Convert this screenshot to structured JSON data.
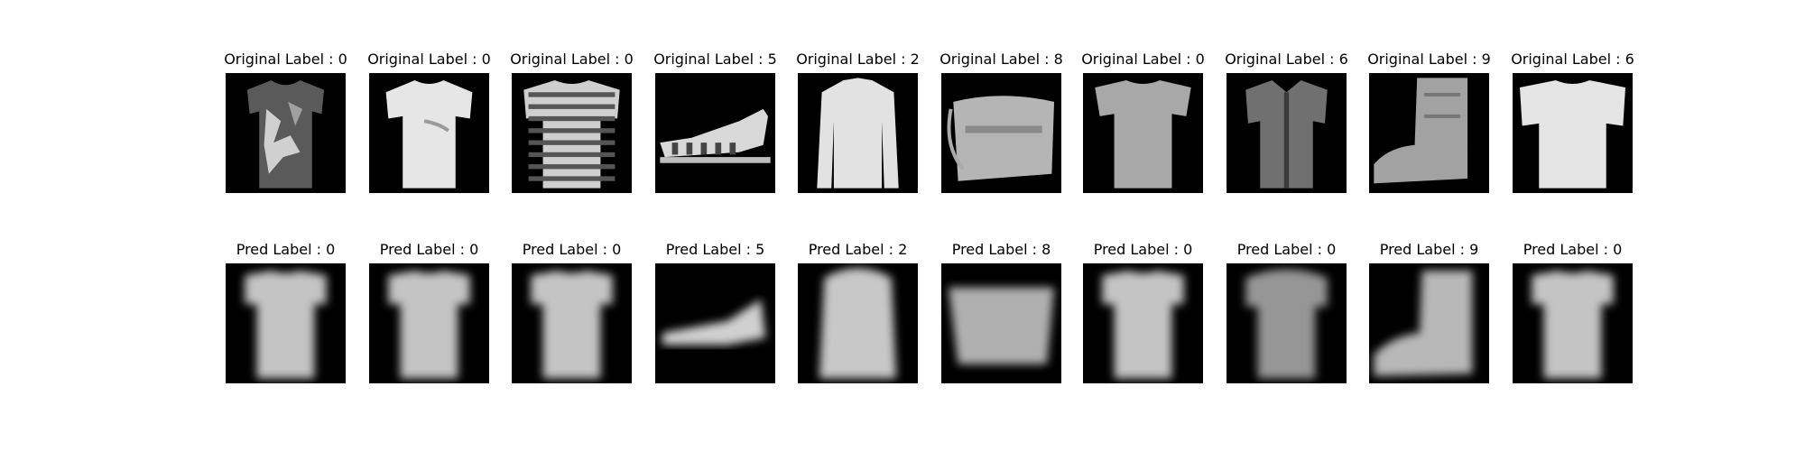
{
  "rows": [
    {
      "caption_prefix": "Original Label : ",
      "items": [
        {
          "label": "0",
          "glyph": "shirt-dark-pattern"
        },
        {
          "label": "0",
          "glyph": "tshirt-light"
        },
        {
          "label": "0",
          "glyph": "tshirt-striped"
        },
        {
          "label": "5",
          "glyph": "sandal"
        },
        {
          "label": "2",
          "glyph": "longsleeve"
        },
        {
          "label": "8",
          "glyph": "bag"
        },
        {
          "label": "0",
          "glyph": "tshirt-gray"
        },
        {
          "label": "6",
          "glyph": "shirt-dark"
        },
        {
          "label": "9",
          "glyph": "boot"
        },
        {
          "label": "6",
          "glyph": "tshirt-wide-light"
        }
      ]
    },
    {
      "caption_prefix": "Pred Label : ",
      "items": [
        {
          "label": "0",
          "glyph": "blur-tshirt"
        },
        {
          "label": "0",
          "glyph": "blur-tshirt"
        },
        {
          "label": "0",
          "glyph": "blur-tshirt"
        },
        {
          "label": "5",
          "glyph": "blur-sneaker"
        },
        {
          "label": "2",
          "glyph": "blur-longsleeve"
        },
        {
          "label": "8",
          "glyph": "blur-bag"
        },
        {
          "label": "0",
          "glyph": "blur-tshirt"
        },
        {
          "label": "0",
          "glyph": "blur-shirt-dark"
        },
        {
          "label": "9",
          "glyph": "blur-boot"
        },
        {
          "label": "0",
          "glyph": "blur-tshirt"
        }
      ]
    }
  ]
}
